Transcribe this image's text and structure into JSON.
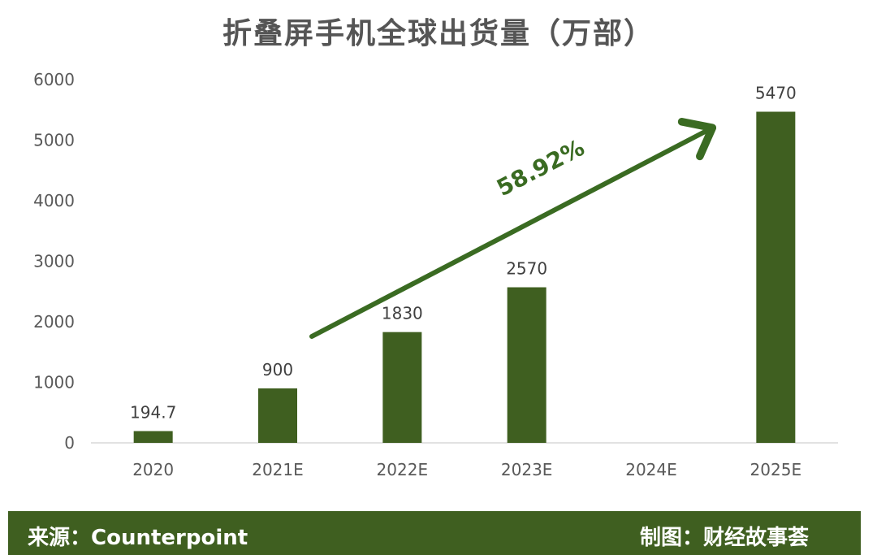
{
  "chart_data": {
    "type": "bar",
    "title": "折叠屏手机全球出货量（万部）",
    "categories": [
      "2020",
      "2021E",
      "2022E",
      "2023E",
      "2024E",
      "2025E"
    ],
    "values": [
      194.7,
      900,
      1830,
      2570,
      null,
      5470
    ],
    "data_labels": [
      "194.7",
      "900",
      "1830",
      "2570",
      "",
      "5470"
    ],
    "ylim": [
      0,
      6000
    ],
    "yticks": [
      0,
      1000,
      2000,
      3000,
      4000,
      5000,
      6000
    ],
    "xlabel": "",
    "ylabel": "",
    "grid": false,
    "legend": "none",
    "bar_color": "#3f5f20",
    "annotation": {
      "label": "58.92%",
      "type": "arrow",
      "color": "#3a6b22"
    }
  },
  "footer": {
    "source": "来源：Counterpoint",
    "credit": "制图：财经故事荟",
    "background": "#3f5f20"
  }
}
